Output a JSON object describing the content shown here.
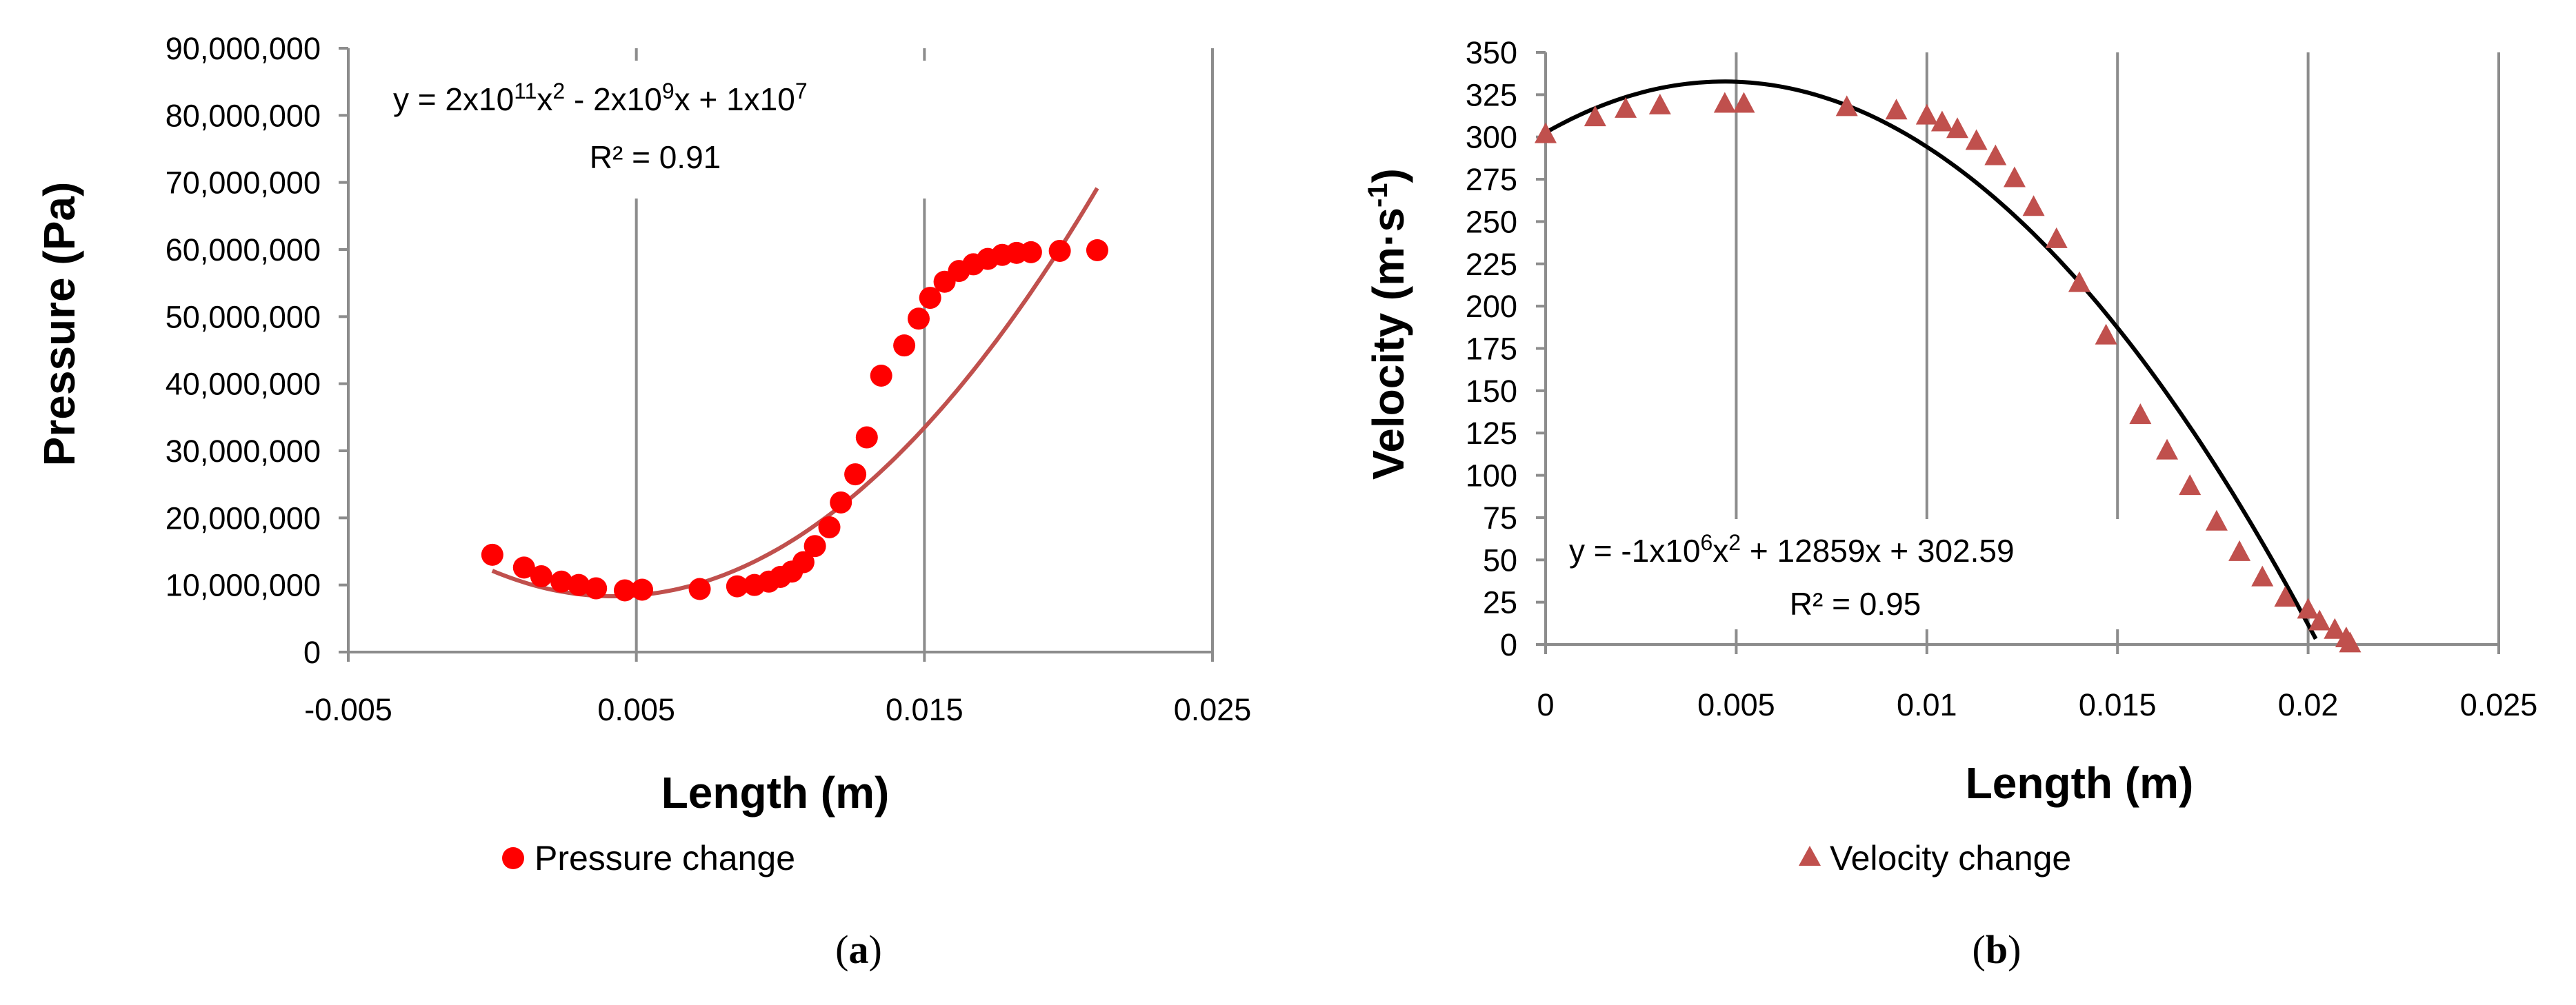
{
  "chart_data": [
    {
      "type": "scatter",
      "panel": "a",
      "caption_open": "(",
      "caption_letter": "a",
      "caption_close": ")",
      "xlabel": "Length (m)",
      "ylabel": "Pressure (Pa)",
      "xlim": [
        -0.005,
        0.025
      ],
      "ylim": [
        0,
        90000000
      ],
      "xticks": [
        -0.005,
        0.005,
        0.015,
        0.025
      ],
      "xtick_labels": [
        "-0.005",
        "0.005",
        "0.015",
        "0.025"
      ],
      "yticks": [
        0,
        10000000,
        20000000,
        30000000,
        40000000,
        50000000,
        60000000,
        70000000,
        80000000,
        90000000
      ],
      "ytick_labels": [
        "0",
        "10,000,000",
        "20,000,000",
        "30,000,000",
        "40,000,000",
        "50,000,000",
        "60,000,000",
        "70,000,000",
        "80,000,000",
        "90,000,000"
      ],
      "grid": "vertical",
      "legend_position": "bottom",
      "series": [
        {
          "name": "Pressure change",
          "marker": "circle",
          "color": "#ff0000",
          "x": [
            0.0,
            0.0011,
            0.0017,
            0.0024,
            0.003,
            0.0036,
            0.0046,
            0.0052,
            0.0072,
            0.0085,
            0.0091,
            0.0096,
            0.01,
            0.0104,
            0.0108,
            0.0112,
            0.0117,
            0.0121,
            0.0126,
            0.013,
            0.0135,
            0.0143,
            0.0148,
            0.0152,
            0.0157,
            0.0162,
            0.0167,
            0.0172,
            0.0177,
            0.0182,
            0.0187,
            0.0197,
            0.021
          ],
          "y": [
            14500000,
            12600000,
            11300000,
            10500000,
            10000000,
            9500000,
            9200000,
            9300000,
            9400000,
            9800000,
            10000000,
            10500000,
            11200000,
            12000000,
            13400000,
            15800000,
            18600000,
            22300000,
            26500000,
            32000000,
            41200000,
            45700000,
            49700000,
            52800000,
            55200000,
            56800000,
            57800000,
            58600000,
            59200000,
            59500000,
            59600000,
            59800000,
            59900000
          ]
        }
      ],
      "trendline": {
        "kind": "polynomial",
        "color": "#c0504d",
        "coefficients": [
          12120000,
          -1810000000,
          215500000000
        ],
        "x_range": [
          0.0,
          0.021
        ]
      },
      "equation_parts": [
        "y = 2x10",
        "11",
        "x",
        "2",
        " - 2x10",
        "9",
        "x + 1x10",
        "7"
      ],
      "r2_label": "R² = 0.91"
    },
    {
      "type": "scatter",
      "panel": "b",
      "caption_open": "(",
      "caption_letter": "b",
      "caption_close": ")",
      "xlabel": "Length (m)",
      "ylabel_parts": [
        "Velocity (m·s",
        "-1",
        ")"
      ],
      "xlim": [
        0,
        0.025
      ],
      "ylim": [
        0,
        350
      ],
      "xticks": [
        0,
        0.005,
        0.01,
        0.015,
        0.02,
        0.025
      ],
      "xtick_labels": [
        "0",
        "0.005",
        "0.01",
        "0.015",
        "0.02",
        "0.025"
      ],
      "yticks": [
        0,
        25,
        50,
        75,
        100,
        125,
        150,
        175,
        200,
        225,
        250,
        275,
        300,
        325,
        350
      ],
      "ytick_labels": [
        "0",
        "25",
        "50",
        "75",
        "100",
        "125",
        "150",
        "175",
        "200",
        "225",
        "250",
        "275",
        "300",
        "325",
        "350"
      ],
      "grid": "vertical",
      "legend_position": "bottom",
      "series": [
        {
          "name": "Velocity change",
          "marker": "triangle",
          "color": "#c0504d",
          "x": [
            0.0,
            0.0013,
            0.0021,
            0.003,
            0.0047,
            0.0052,
            0.0079,
            0.0092,
            0.01,
            0.0104,
            0.0108,
            0.0113,
            0.0118,
            0.0123,
            0.0128,
            0.0134,
            0.014,
            0.0147,
            0.0156,
            0.0163,
            0.0169,
            0.0176,
            0.0182,
            0.0188,
            0.0194,
            0.02,
            0.0203,
            0.0207,
            0.021,
            0.0211
          ],
          "y": [
            301,
            311,
            316,
            318,
            319,
            319,
            317,
            315,
            312,
            308,
            304,
            297,
            288,
            275,
            258,
            239,
            213,
            182,
            135,
            114,
            93,
            72,
            54,
            39,
            27,
            20,
            13,
            8,
            3,
            0
          ]
        }
      ],
      "trendline": {
        "kind": "polynomial",
        "color": "#000000",
        "coefficients": [
          302.59,
          12859,
          -1370000
        ],
        "x_range": [
          0.0,
          0.0202
        ]
      },
      "equation_parts": [
        "y = -1x10",
        "6",
        "x",
        "2",
        " + 12859x + 302.59"
      ],
      "r2_label": "R² = 0.95"
    }
  ]
}
